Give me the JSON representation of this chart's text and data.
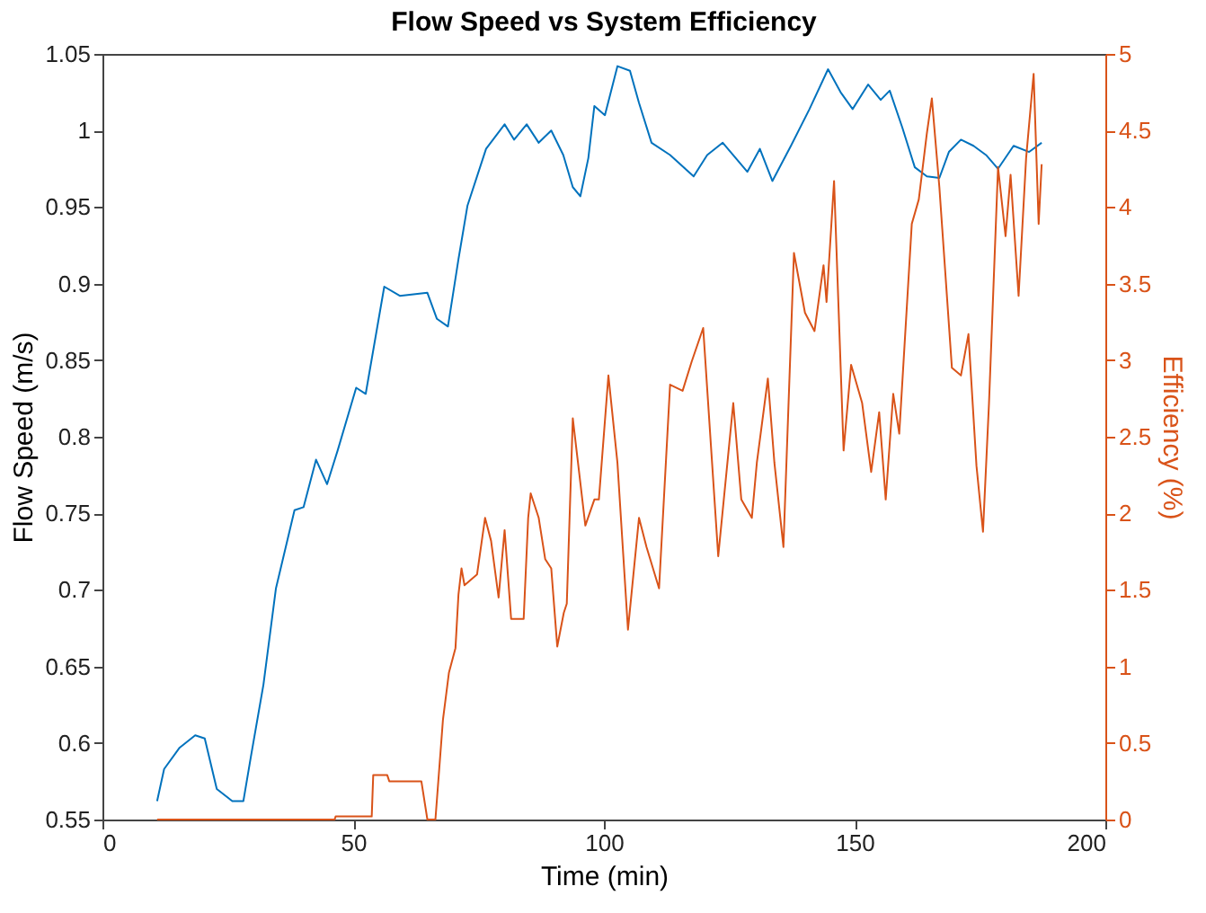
{
  "chart_data": {
    "type": "line",
    "title": "Flow Speed vs System Efficiency",
    "xlabel": "Time (min)",
    "ylabel": "Flow Speed (m/s)",
    "y2label": "Efficiency (%)",
    "xlim": [
      0,
      200
    ],
    "xticks": [
      0,
      50,
      100,
      150,
      200
    ],
    "ylim": [
      0.55,
      1.05
    ],
    "yticks": [
      0.55,
      0.6,
      0.65,
      0.7,
      0.75,
      0.8,
      0.85,
      0.9,
      0.95,
      1,
      1.05
    ],
    "y2lim": [
      0,
      5
    ],
    "y2ticks": [
      0,
      0.5,
      1,
      1.5,
      2,
      2.5,
      3,
      3.5,
      4,
      4.5,
      5
    ],
    "grid": false,
    "line_style": "solid",
    "marker": "none",
    "series": [
      {
        "color": "#0072bd",
        "x": [
          10.9,
          12.3,
          15.4,
          18.5,
          20.4,
          22.8,
          25.9,
          28.1,
          29.6,
          32.1,
          34.6,
          38.3,
          40.1,
          42.6,
          44.8,
          46.9,
          50.6,
          52.5,
          56.2,
          59.3,
          64.8,
          66.7,
          68.9,
          71.0,
          72.8,
          76.5,
          80.2,
          82.1,
          84.6,
          87.0,
          89.5,
          91.9,
          93.8,
          95.3,
          96.9,
          98.1,
          100.2,
          102.7,
          105.2,
          107.0,
          109.5,
          113.2,
          117.9,
          120.6,
          123.7,
          128.6,
          131.1,
          133.6,
          137.3,
          141.0,
          144.7,
          147.2,
          149.6,
          152.7,
          155.2,
          157.0,
          159.5,
          162.0,
          164.4,
          166.9,
          168.8,
          171.2,
          173.7,
          176.2,
          178.6,
          181.7,
          184.8,
          187.3
        ],
        "values": [
          0.562,
          0.583,
          0.597,
          0.605,
          0.603,
          0.57,
          0.562,
          0.562,
          0.591,
          0.638,
          0.701,
          0.752,
          0.754,
          0.785,
          0.769,
          0.791,
          0.832,
          0.828,
          0.898,
          0.892,
          0.894,
          0.877,
          0.872,
          0.916,
          0.951,
          0.988,
          1.004,
          0.994,
          1.004,
          0.992,
          1.0,
          0.984,
          0.963,
          0.957,
          0.982,
          1.016,
          1.01,
          1.042,
          1.039,
          1.018,
          0.992,
          0.984,
          0.97,
          0.984,
          0.992,
          0.973,
          0.988,
          0.967,
          0.99,
          1.014,
          1.04,
          1.025,
          1.014,
          1.03,
          1.02,
          1.026,
          1.002,
          0.976,
          0.97,
          0.969,
          0.986,
          0.994,
          0.99,
          0.984,
          0.975,
          0.99,
          0.986,
          0.992
        ]
      },
      {
        "color": "#d95319",
        "axis": "y2",
        "x": [
          10.9,
          46.3,
          46.5,
          53.7,
          54.0,
          56.8,
          57.2,
          63.6,
          64.8,
          66.4,
          67.9,
          69.1,
          70.4,
          71.0,
          71.6,
          72.2,
          74.7,
          76.3,
          77.5,
          79.0,
          80.2,
          81.5,
          84.0,
          84.9,
          85.4,
          87.0,
          88.3,
          89.5,
          90.7,
          92.0,
          92.6,
          93.8,
          96.3,
          98.1,
          99.0,
          100.9,
          102.7,
          104.8,
          107.0,
          108.5,
          111.0,
          113.2,
          115.7,
          117.5,
          119.8,
          122.8,
          125.8,
          127.4,
          129.5,
          130.5,
          132.7,
          134.0,
          135.8,
          137.9,
          140.1,
          142.0,
          143.8,
          144.4,
          145.9,
          147.8,
          149.3,
          151.5,
          153.3,
          154.9,
          156.2,
          157.7,
          158.9,
          161.4,
          162.8,
          164.4,
          165.4,
          166.9,
          169.4,
          171.2,
          172.7,
          174.3,
          175.6,
          176.8,
          178.6,
          180.1,
          181.1,
          182.7,
          184.2,
          185.7,
          186.7,
          187.3
        ],
        "values": [
          0,
          0,
          0.02,
          0.02,
          0.29,
          0.29,
          0.25,
          0.25,
          0,
          0,
          0.65,
          0.96,
          1.12,
          1.47,
          1.64,
          1.53,
          1.6,
          1.97,
          1.82,
          1.45,
          1.89,
          1.31,
          1.31,
          1.97,
          2.13,
          1.97,
          1.7,
          1.64,
          1.13,
          1.35,
          1.41,
          2.62,
          1.92,
          2.09,
          2.09,
          2.9,
          2.33,
          1.24,
          1.97,
          1.78,
          1.51,
          2.84,
          2.8,
          2.99,
          3.21,
          1.72,
          2.72,
          2.09,
          1.97,
          2.33,
          2.88,
          2.33,
          1.78,
          3.7,
          3.31,
          3.19,
          3.62,
          3.38,
          4.17,
          2.41,
          2.97,
          2.72,
          2.27,
          2.66,
          2.09,
          2.78,
          2.52,
          3.89,
          4.05,
          4.48,
          4.71,
          4.13,
          2.95,
          2.9,
          3.17,
          2.31,
          1.88,
          2.72,
          4.26,
          3.81,
          4.21,
          3.42,
          4.32,
          4.87,
          3.89,
          4.28
        ]
      }
    ]
  }
}
